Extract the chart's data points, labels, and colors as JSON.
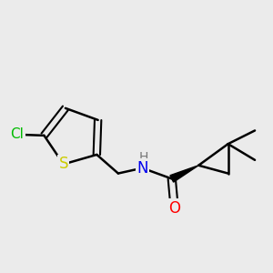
{
  "background_color": "#ebebeb",
  "bond_color": "#000000",
  "bond_width": 1.8,
  "atom_colors": {
    "Cl": "#00bb00",
    "S": "#cccc00",
    "N": "#0000ee",
    "O": "#ff0000",
    "H": "#888888"
  },
  "font_size": 11
}
